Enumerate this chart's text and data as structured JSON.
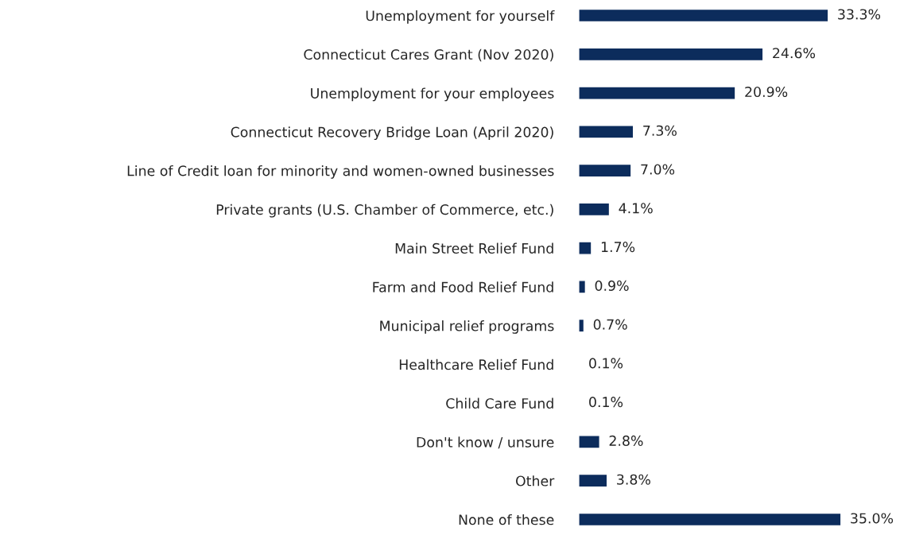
{
  "chart_data": {
    "type": "bar",
    "orientation": "horizontal",
    "data_labels": true,
    "color": "#0c2c5c",
    "categories": [
      "Unemployment for yourself",
      "Connecticut Cares Grant (Nov 2020)",
      "Unemployment for your employees",
      "Connecticut Recovery Bridge Loan (April 2020)",
      "Line of Credit loan for minority and women-owned businesses",
      "Private grants (U.S. Chamber of Commerce, etc.)",
      "Main Street Relief Fund",
      "Farm and Food Relief Fund",
      "Municipal relief programs",
      "Healthcare Relief Fund",
      "Child Care Fund",
      "Don't know / unsure",
      "Other",
      "None of these"
    ],
    "values": [
      33.3,
      24.6,
      20.9,
      7.3,
      7.0,
      4.1,
      1.7,
      0.9,
      0.7,
      0.1,
      0.1,
      2.8,
      3.8,
      35.0
    ],
    "value_labels": [
      "33.3%",
      "24.6%",
      "20.9%",
      "7.3%",
      "7.0%",
      "4.1%",
      "1.7%",
      "0.9%",
      "0.7%",
      "0.1%",
      "0.1%",
      "2.8%",
      "3.8%",
      "35.0%"
    ]
  }
}
